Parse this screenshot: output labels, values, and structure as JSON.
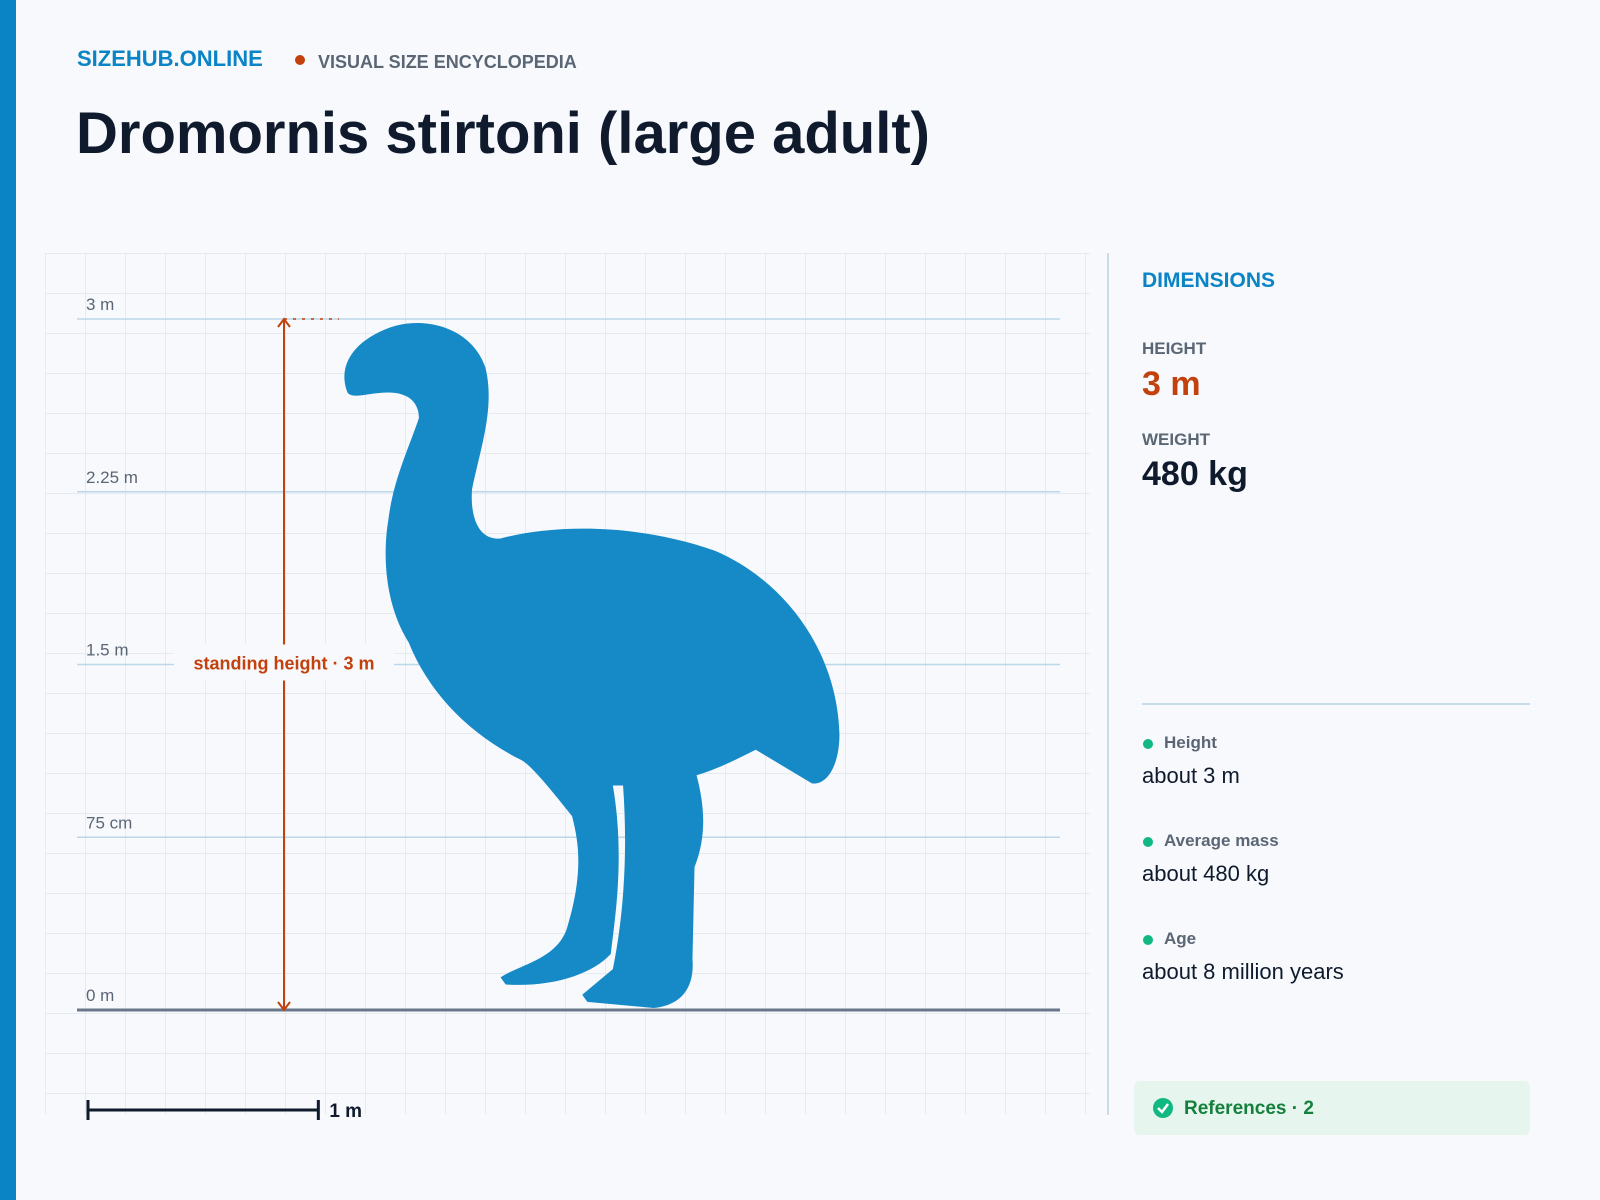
{
  "header": {
    "brand": "SIZEHUB.ONLINE",
    "tagline": "VISUAL SIZE ENCYCLOPEDIA",
    "title": "Dromornis stirtoni (large adult)"
  },
  "chart_data": {
    "type": "silhouette",
    "height": 3,
    "annotation": "standing height · 3 m",
    "ylim": [
      0,
      3
    ],
    "yticks": [
      {
        "value": 0,
        "label": "0 m"
      },
      {
        "value": 0.75,
        "label": "75 cm"
      },
      {
        "value": 1.5,
        "label": "1.5 m"
      },
      {
        "value": 2.25,
        "label": "2.25 m"
      },
      {
        "value": 3,
        "label": "3 m"
      }
    ],
    "scale_bar": {
      "value": 1,
      "label": "1 m"
    },
    "color": "#1689c7"
  },
  "sidebar": {
    "heading": "DIMENSIONS",
    "height_label": "HEIGHT",
    "height_value": "3 m",
    "weight_label": "WEIGHT",
    "weight_value": "480 kg",
    "facts": [
      {
        "label": "Height",
        "value": "about 3 m"
      },
      {
        "label": "Average mass",
        "value": "about 480 kg"
      },
      {
        "label": "Age",
        "value": "about 8 million years"
      }
    ],
    "references": "References · 2"
  }
}
